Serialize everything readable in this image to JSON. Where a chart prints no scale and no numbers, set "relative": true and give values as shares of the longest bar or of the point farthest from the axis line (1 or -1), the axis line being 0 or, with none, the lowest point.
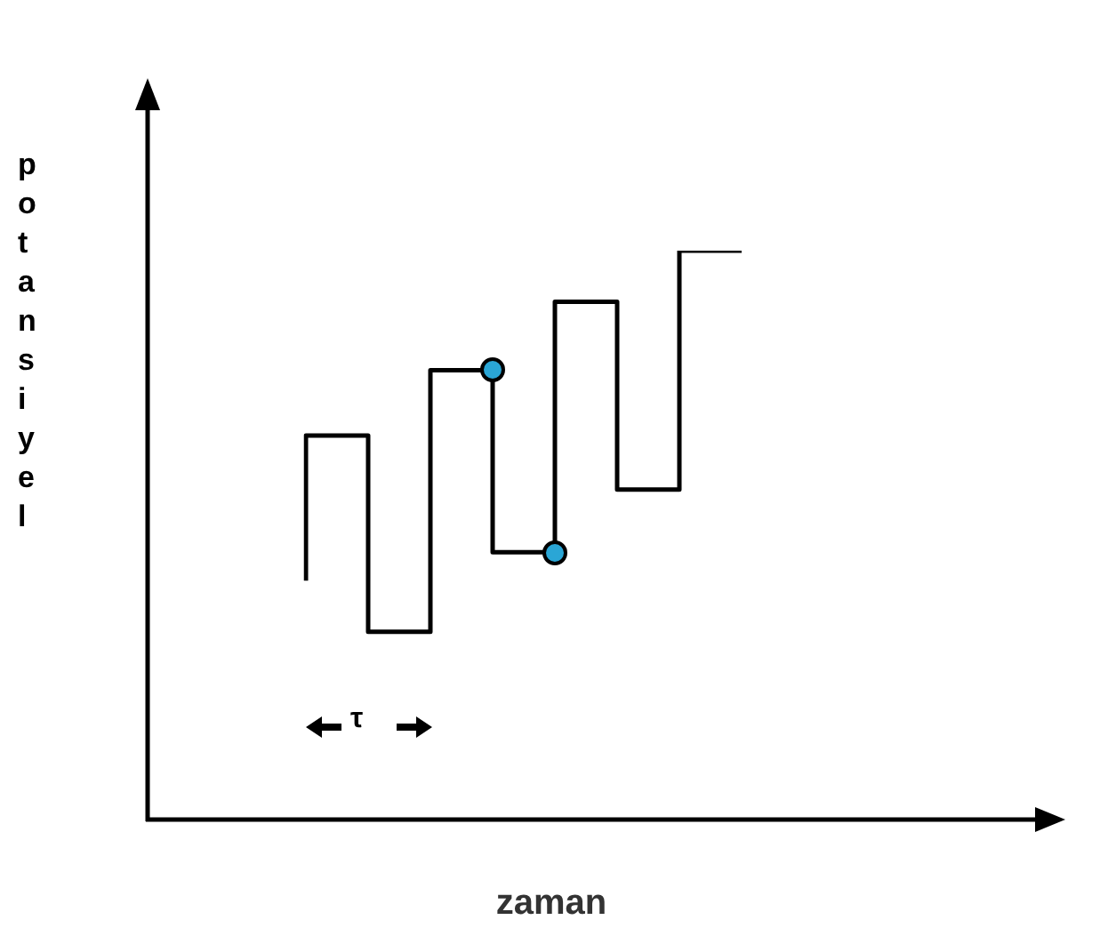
{
  "chart_data": {
    "type": "step",
    "relative": true,
    "xlabel": "zaman",
    "ylabel": "potansiyel",
    "categories": [
      null,
      null,
      null,
      null,
      null,
      null,
      null,
      null
    ],
    "series": [
      {
        "color": "#000000",
        "values": [
          0.42,
          0.675,
          0.33,
          0.79,
          0.47,
          0.91,
          0.58,
          1
        ]
      }
    ],
    "annotations": [
      "τ"
    ]
  }
}
